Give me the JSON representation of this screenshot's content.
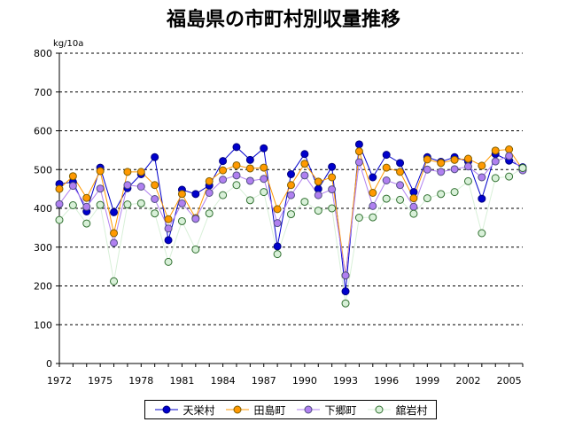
{
  "chart_data": {
    "type": "line",
    "title": "福島県の市町村別収量推移",
    "ylabel": "kg/10a",
    "xlabel": "",
    "ylim": [
      0,
      800
    ],
    "yticks": [
      0,
      100,
      200,
      300,
      400,
      500,
      600,
      700,
      800
    ],
    "xticks": [
      1972,
      1975,
      1978,
      1981,
      1984,
      1987,
      1990,
      1993,
      1996,
      1999,
      2002,
      2005
    ],
    "xlim": [
      1972,
      2006
    ],
    "grid": "horizontal dashed",
    "legend_position": "bottom",
    "x": [
      1972,
      1973,
      1974,
      1975,
      1976,
      1977,
      1978,
      1979,
      1980,
      1981,
      1982,
      1983,
      1984,
      1985,
      1986,
      1987,
      1988,
      1989,
      1990,
      1991,
      1992,
      1993,
      1994,
      1995,
      1996,
      1997,
      1998,
      1999,
      2000,
      2001,
      2002,
      2003,
      2004,
      2005,
      2006
    ],
    "series": [
      {
        "name": "天栄村",
        "color": "#0000cc",
        "marker_edge": "#000080",
        "values": [
          463,
          468,
          392,
          505,
          390,
          452,
          488,
          532,
          318,
          448,
          437,
          459,
          522,
          558,
          525,
          555,
          302,
          488,
          540,
          450,
          507,
          186,
          565,
          480,
          538,
          517,
          442,
          532,
          520,
          532,
          521,
          425,
          540,
          523,
          506
        ]
      },
      {
        "name": "田島町",
        "color": "#ff9900",
        "marker_edge": "#806000",
        "values": [
          450,
          483,
          427,
          496,
          336,
          494,
          494,
          460,
          372,
          437,
          375,
          470,
          498,
          511,
          503,
          505,
          398,
          460,
          515,
          469,
          480,
          227,
          547,
          440,
          505,
          494,
          426,
          526,
          517,
          525,
          528,
          510,
          549,
          552,
          500
        ]
      },
      {
        "name": "下郷町",
        "color": "#b080f0",
        "marker_edge": "#505080",
        "values": [
          411,
          458,
          404,
          451,
          311,
          460,
          456,
          424,
          348,
          413,
          373,
          440,
          474,
          485,
          471,
          476,
          362,
          434,
          485,
          434,
          449,
          227,
          519,
          406,
          472,
          460,
          404,
          500,
          494,
          501,
          508,
          480,
          521,
          535,
          498
        ]
      },
      {
        "name": "舘岩村",
        "color": "#d8f0d8",
        "marker_edge": "#307030",
        "values": [
          370,
          408,
          361,
          409,
          212,
          410,
          413,
          387,
          262,
          367,
          294,
          387,
          434,
          460,
          421,
          442,
          282,
          385,
          417,
          394,
          400,
          155,
          376,
          377,
          425,
          422,
          386,
          426,
          437,
          442,
          470,
          336,
          478,
          482,
          504
        ]
      }
    ]
  }
}
